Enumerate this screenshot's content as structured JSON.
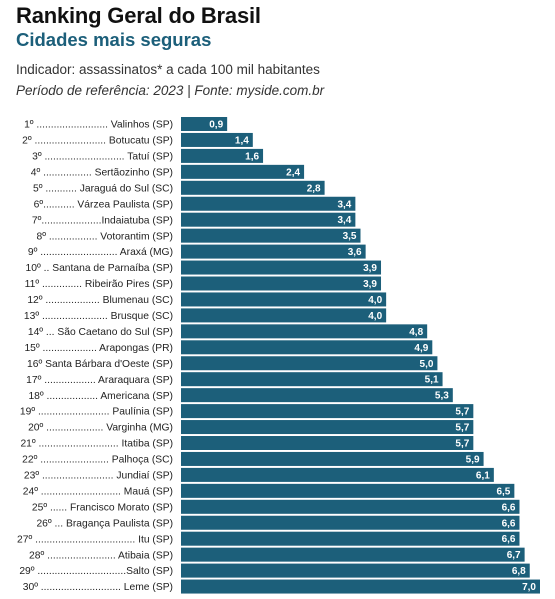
{
  "header": {
    "title": "Ranking Geral do Brasil",
    "subtitle": "Cidades mais seguras",
    "indicator": "Indicador: assassinatos* a cada 100 mil habitantes",
    "period": "Período de referência: 2023 | Fonte: myside.com.br"
  },
  "colors": {
    "bar": "#1c5f7a",
    "value_text": "#ffffff",
    "title": "#111111",
    "subtitle": "#1c5f7a"
  },
  "chart_data": {
    "type": "bar",
    "orientation": "horizontal",
    "title": "Ranking Geral do Brasil",
    "subtitle": "Cidades mais seguras",
    "categories": [
      "1º ......................... Valinhos (SP)",
      "2º ......................... Botucatu (SP)",
      "3º ............................ Tatuí (SP)",
      "4º ................. Sertãozinho (SP)",
      "5º ........... Jaraguá do Sul (SC)",
      "6º........... Várzea Paulista (SP)",
      "7º.....................Indaiatuba (SP)",
      "8º ................. Votorantim (SP)",
      "9º ........................... Araxá (MG)",
      "10º .. Santana de Parnaíba (SP)",
      "11º .............. Ribeirão Pires (SP)",
      "12º ................... Blumenau (SC)",
      "13º ....................... Brusque (SC)",
      "14º ... São Caetano do Sul (SP)",
      "15º ................... Arapongas (PR)",
      "16º Santa Bárbara d'Oeste (SP)",
      "17º .................. Araraquara (SP)",
      "18º .................. Americana (SP)",
      "19º ......................... Paulínia (SP)",
      "20º .................... Varginha (MG)",
      "21º ............................ Itatiba (SP)",
      "22º ........................ Palhoça (SC)",
      "23º ......................... Jundiaí (SP)",
      "24º ............................ Mauá (SP)",
      "25º ...... Francisco Morato (SP)",
      "26º ... Bragança Paulista (SP)",
      "27º ................................... Itu (SP)",
      "28º ........................ Atibaia (SP)",
      "29º ...............................Salto (SP)",
      "30º ............................ Leme (SP)"
    ],
    "values": [
      0.9,
      1.4,
      1.6,
      2.4,
      2.8,
      3.4,
      3.4,
      3.5,
      3.6,
      3.9,
      3.9,
      4.0,
      4.0,
      4.8,
      4.9,
      5.0,
      5.1,
      5.3,
      5.7,
      5.7,
      5.7,
      5.9,
      6.1,
      6.5,
      6.6,
      6.6,
      6.6,
      6.7,
      6.8,
      7.0
    ],
    "value_labels": [
      "0,9",
      "1,4",
      "1,6",
      "2,4",
      "2,8",
      "3,4",
      "3,4",
      "3,5",
      "3,6",
      "3,9",
      "3,9",
      "4,0",
      "4,0",
      "4,8",
      "4,9",
      "5,0",
      "5,1",
      "5,3",
      "5,7",
      "5,7",
      "5,7",
      "5,9",
      "6,1",
      "6,5",
      "6,6",
      "6,6",
      "6,6",
      "6,7",
      "6,8",
      "7,0"
    ],
    "xlim": [
      0,
      7.0
    ],
    "grid": false,
    "legend": "none"
  }
}
